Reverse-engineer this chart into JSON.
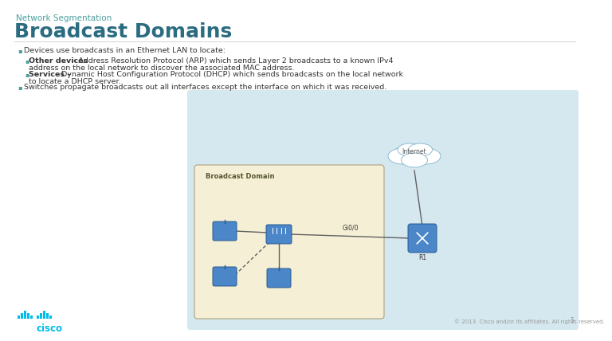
{
  "title_small": "Network Segmentation",
  "title_large": "Broadcast Domains",
  "title_small_color": "#4d9ea0",
  "title_large_color": "#2b6c80",
  "bg_color": "#ffffff",
  "text_color": "#333333",
  "bullet_color": "#4d9ea0",
  "bullet1": "Devices use broadcasts in an Ethernet LAN to locate:",
  "sub1_bold": "Other devices",
  "sub1_rest_line1": " - Address Resolution Protocol (ARP) which sends Layer 2 broadcasts to a known IPv4",
  "sub1_rest_line2": "address on the local network to discover the associated MAC address.",
  "sub2_bold": "Services –",
  "sub2_rest_line1": " Dynamic Host Configuration Protocol (DHCP) which sends broadcasts on the local network",
  "sub2_rest_line2": "to locate a DHCP server.",
  "bullet2": "Switches propagate broadcasts out all interfaces except the interface on which it was received.",
  "footer_copy": "© 2013  Cisco and/or its affiliates. All rights reserved.",
  "footer_page": "5",
  "cisco_blue": "#00bceb",
  "diagram_bg": "#d5e8f0",
  "bd_box_bg": "#f5f0d5",
  "bd_box_edge": "#b8b090",
  "device_blue": "#4a86c8",
  "device_dark": "#2a5a90",
  "line_color": "#606060",
  "internet_label": "Internet",
  "domain_label": "Broadcast Domain",
  "router_label": "R1",
  "link_label": "Gi0/0",
  "title_small_fs": 7.5,
  "title_large_fs": 18,
  "body_fs": 6.8,
  "bold_fs": 6.8
}
